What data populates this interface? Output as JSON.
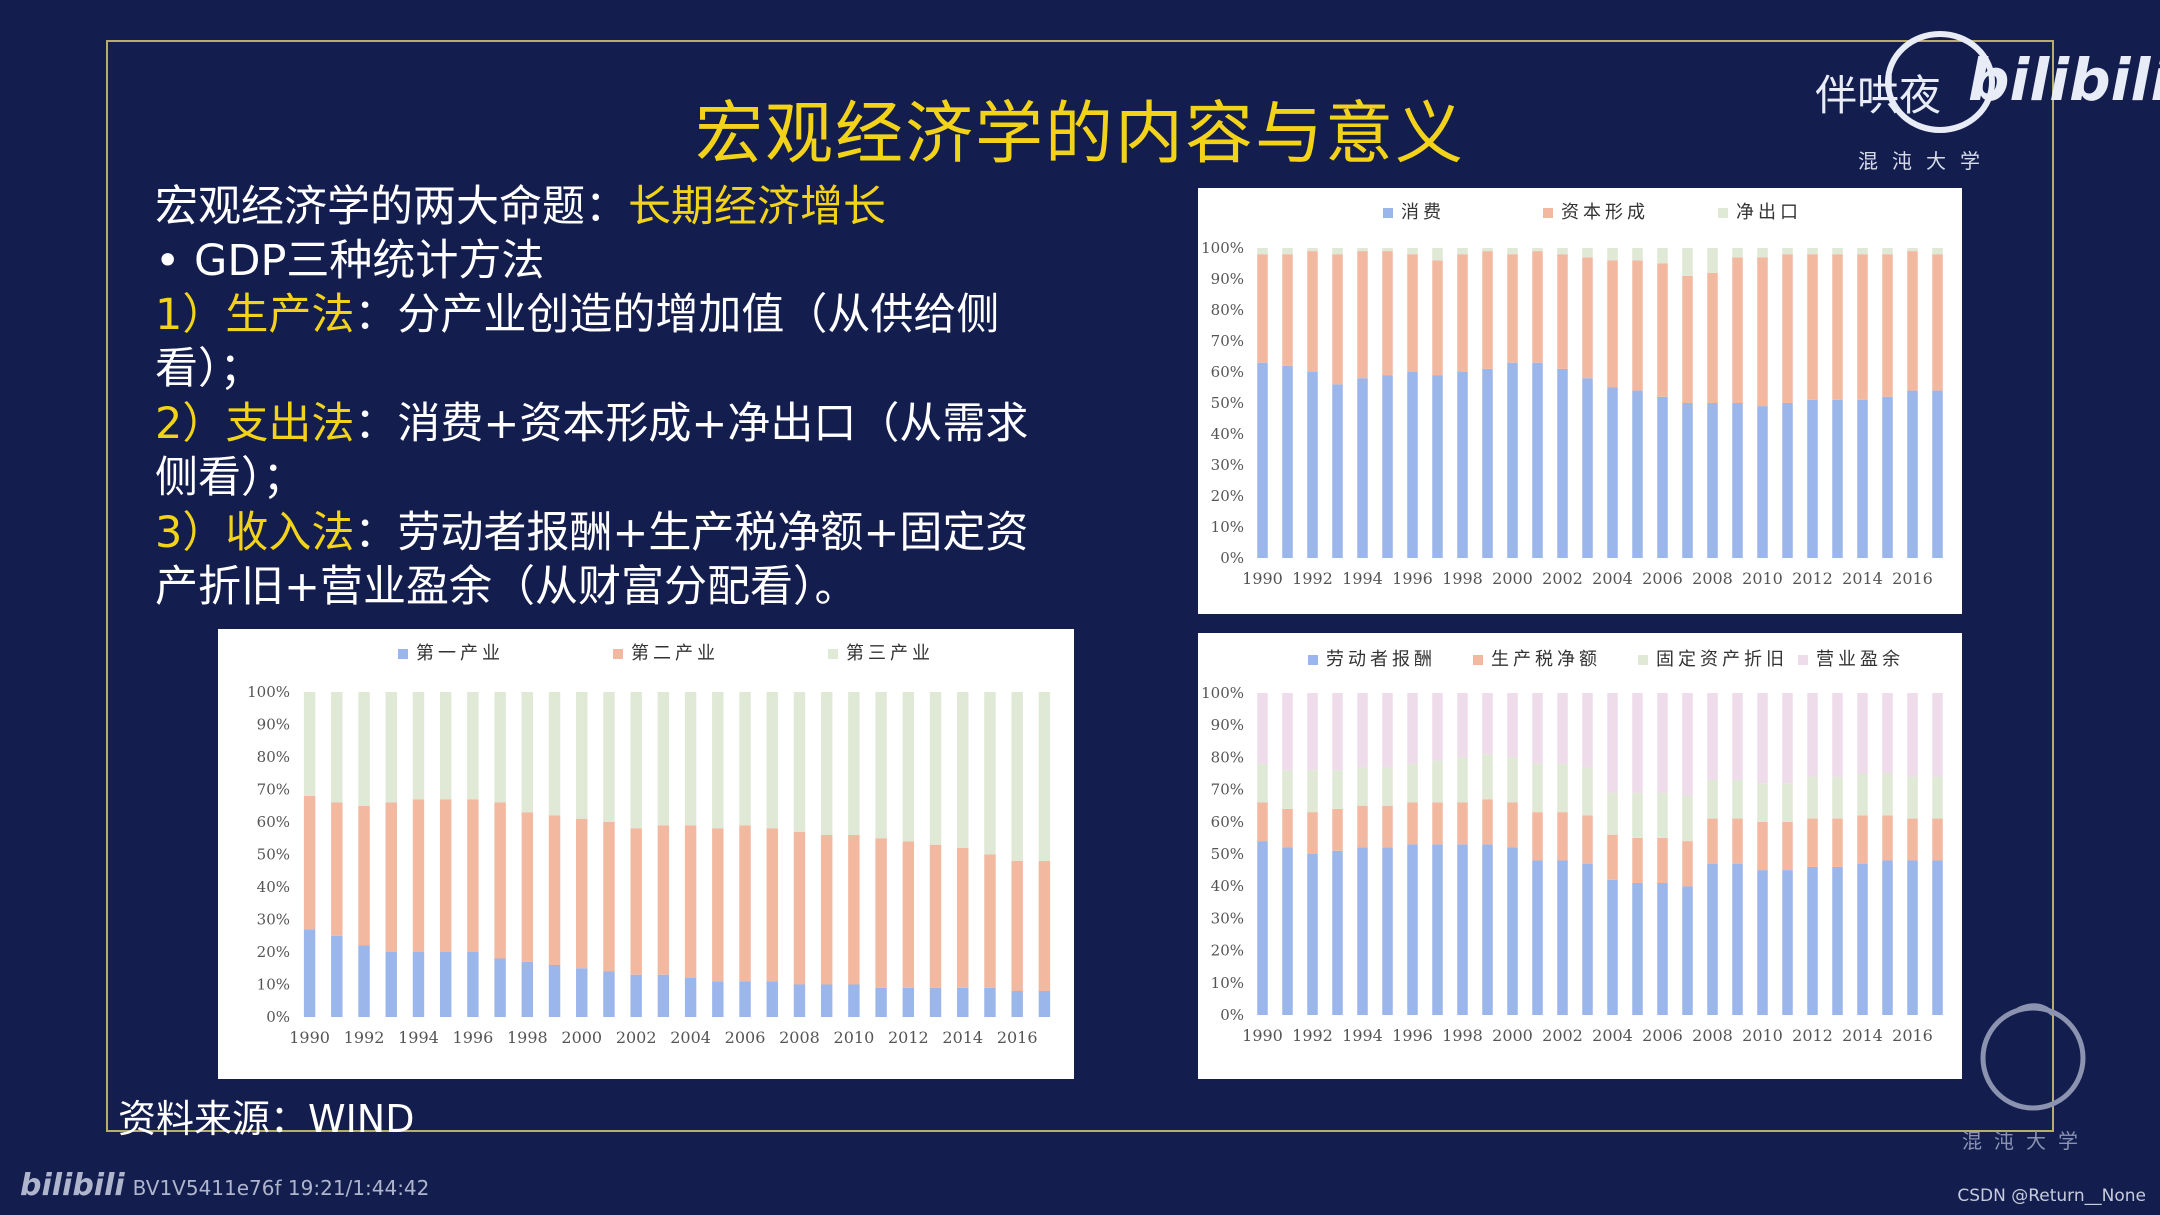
{
  "slide": {
    "title": "宏观经济学的内容与意义",
    "line1_text": "宏观经济学的两大命题：",
    "line1_highlight": "长期经济增长",
    "bullet_text": "•  GDP三种统计方法",
    "item1_label": "1）生产法",
    "item1_text": "：分产业创造的增加值（从供给侧",
    "item1_cont": "看）；",
    "item2_label": "2）支出法",
    "item2_text": "：消费+资本形成+净出口（从需求",
    "item2_cont": "侧看）；",
    "item3_label": "3）收入法",
    "item3_text": "：劳动者报酬+生产税净额+固定资",
    "item3_cont": "产折旧+营业盈余（从财富分配看）。",
    "source": "资料来源：WIND"
  },
  "watermark": {
    "text": "伴哄夜",
    "brand": "bilibili",
    "univ": "混沌大学",
    "corner_univ": "混沌大学"
  },
  "footer": {
    "video_id": "BV1V5411e76f 19:21/1:44:42",
    "credit": "CSDN @Return__None",
    "logo_text": "bilibili"
  },
  "colors": {
    "background": "#131d4e",
    "highlight": "#f2d31a",
    "series_blue": "#9bb6ea",
    "series_orange": "#f2b8a0",
    "series_green": "#dfe9d6",
    "series_pink": "#efdceb"
  },
  "chart_data": [
    {
      "type": "bar",
      "stacked": true,
      "categories": [
        "1990",
        "1991",
        "1992",
        "1993",
        "1994",
        "1995",
        "1996",
        "1997",
        "1998",
        "1999",
        "2000",
        "2001",
        "2002",
        "2003",
        "2004",
        "2005",
        "2006",
        "2007",
        "2008",
        "2009",
        "2010",
        "2011",
        "2012",
        "2013",
        "2014",
        "2015",
        "2016",
        "2017"
      ],
      "tick_labels": [
        "1990",
        "1992",
        "1994",
        "1996",
        "1998",
        "2000",
        "2002",
        "2004",
        "2006",
        "2008",
        "2010",
        "2012",
        "2014",
        "2016"
      ],
      "y_ticks": [
        "0%",
        "10%",
        "20%",
        "30%",
        "40%",
        "50%",
        "60%",
        "70%",
        "80%",
        "90%",
        "100%"
      ],
      "ylim": [
        0,
        100
      ],
      "legend_position": "top",
      "series": [
        {
          "name": "第一产业",
          "color": "#9bb6ea",
          "values": [
            27,
            25,
            22,
            20,
            20,
            20,
            20,
            18,
            17,
            16,
            15,
            14,
            13,
            13,
            12,
            11,
            11,
            11,
            10,
            10,
            10,
            9,
            9,
            9,
            9,
            9,
            8,
            8
          ]
        },
        {
          "name": "第二产业",
          "color": "#f2b8a0",
          "values": [
            41,
            41,
            43,
            46,
            47,
            47,
            47,
            48,
            46,
            46,
            46,
            46,
            45,
            46,
            47,
            47,
            48,
            47,
            47,
            46,
            46,
            46,
            45,
            44,
            43,
            41,
            40,
            40
          ]
        },
        {
          "name": "第三产业",
          "color": "#dfe9d6",
          "values": [
            32,
            34,
            35,
            34,
            33,
            33,
            33,
            34,
            37,
            38,
            39,
            40,
            42,
            41,
            41,
            42,
            41,
            42,
            43,
            44,
            44,
            45,
            46,
            47,
            48,
            50,
            52,
            52
          ]
        }
      ]
    },
    {
      "type": "bar",
      "stacked": true,
      "categories": [
        "1990",
        "1991",
        "1992",
        "1993",
        "1994",
        "1995",
        "1996",
        "1997",
        "1998",
        "1999",
        "2000",
        "2001",
        "2002",
        "2003",
        "2004",
        "2005",
        "2006",
        "2007",
        "2008",
        "2009",
        "2010",
        "2011",
        "2012",
        "2013",
        "2014",
        "2015",
        "2016",
        "2017"
      ],
      "tick_labels": [
        "1990",
        "1992",
        "1994",
        "1996",
        "1998",
        "2000",
        "2002",
        "2004",
        "2006",
        "2008",
        "2010",
        "2012",
        "2014",
        "2016"
      ],
      "y_ticks": [
        "0%",
        "10%",
        "20%",
        "30%",
        "40%",
        "50%",
        "60%",
        "70%",
        "80%",
        "90%",
        "100%"
      ],
      "ylim": [
        0,
        100
      ],
      "legend_position": "top",
      "series": [
        {
          "name": "消费",
          "color": "#9bb6ea",
          "values": [
            63,
            62,
            60,
            56,
            58,
            59,
            60,
            59,
            60,
            61,
            63,
            63,
            61,
            58,
            55,
            54,
            52,
            50,
            50,
            50,
            49,
            50,
            51,
            51,
            51,
            52,
            54,
            54
          ]
        },
        {
          "name": "资本形成",
          "color": "#f2b8a0",
          "values": [
            35,
            36,
            39,
            42,
            41,
            40,
            38,
            37,
            38,
            38,
            35,
            36,
            37,
            39,
            41,
            42,
            43,
            41,
            42,
            47,
            48,
            48,
            47,
            47,
            47,
            46,
            45,
            44
          ]
        },
        {
          "name": "净出口",
          "color": "#dfe9d6",
          "values": [
            2,
            2,
            1,
            2,
            1,
            1,
            2,
            4,
            2,
            1,
            2,
            1,
            2,
            3,
            4,
            4,
            5,
            9,
            8,
            3,
            3,
            2,
            2,
            2,
            2,
            2,
            1,
            2
          ]
        }
      ]
    },
    {
      "type": "bar",
      "stacked": true,
      "categories": [
        "1990",
        "1991",
        "1992",
        "1993",
        "1994",
        "1995",
        "1996",
        "1997",
        "1998",
        "1999",
        "2000",
        "2001",
        "2002",
        "2003",
        "2004",
        "2005",
        "2006",
        "2007",
        "2008",
        "2009",
        "2010",
        "2011",
        "2012",
        "2013",
        "2014",
        "2015",
        "2016",
        "2017"
      ],
      "tick_labels": [
        "1990",
        "1992",
        "1994",
        "1996",
        "1998",
        "2000",
        "2002",
        "2004",
        "2006",
        "2008",
        "2010",
        "2012",
        "2014",
        "2016"
      ],
      "y_ticks": [
        "0%",
        "10%",
        "20%",
        "30%",
        "40%",
        "50%",
        "60%",
        "70%",
        "80%",
        "90%",
        "100%"
      ],
      "ylim": [
        0,
        100
      ],
      "legend_position": "top",
      "series": [
        {
          "name": "劳动者报酬",
          "color": "#9bb6ea",
          "values": [
            54,
            52,
            50,
            51,
            52,
            52,
            53,
            53,
            53,
            53,
            52,
            48,
            48,
            47,
            42,
            41,
            41,
            40,
            47,
            47,
            45,
            45,
            46,
            46,
            47,
            48,
            48,
            48
          ]
        },
        {
          "name": "生产税净额",
          "color": "#f2b8a0",
          "values": [
            12,
            12,
            13,
            13,
            13,
            13,
            13,
            13,
            13,
            14,
            14,
            15,
            15,
            15,
            14,
            14,
            14,
            14,
            14,
            14,
            15,
            15,
            15,
            15,
            15,
            14,
            13,
            13
          ]
        },
        {
          "name": "固定资产折旧",
          "color": "#dfe9d6",
          "values": [
            12,
            12,
            13,
            12,
            12,
            12,
            12,
            13,
            14,
            14,
            14,
            15,
            15,
            15,
            13,
            14,
            14,
            14,
            12,
            12,
            12,
            12,
            13,
            13,
            13,
            13,
            13,
            13
          ]
        },
        {
          "name": "营业盈余",
          "color": "#efdceb",
          "values": [
            22,
            24,
            24,
            24,
            23,
            23,
            22,
            21,
            20,
            19,
            20,
            22,
            22,
            23,
            31,
            31,
            31,
            32,
            27,
            27,
            28,
            28,
            26,
            26,
            25,
            25,
            26,
            26
          ]
        }
      ]
    }
  ]
}
